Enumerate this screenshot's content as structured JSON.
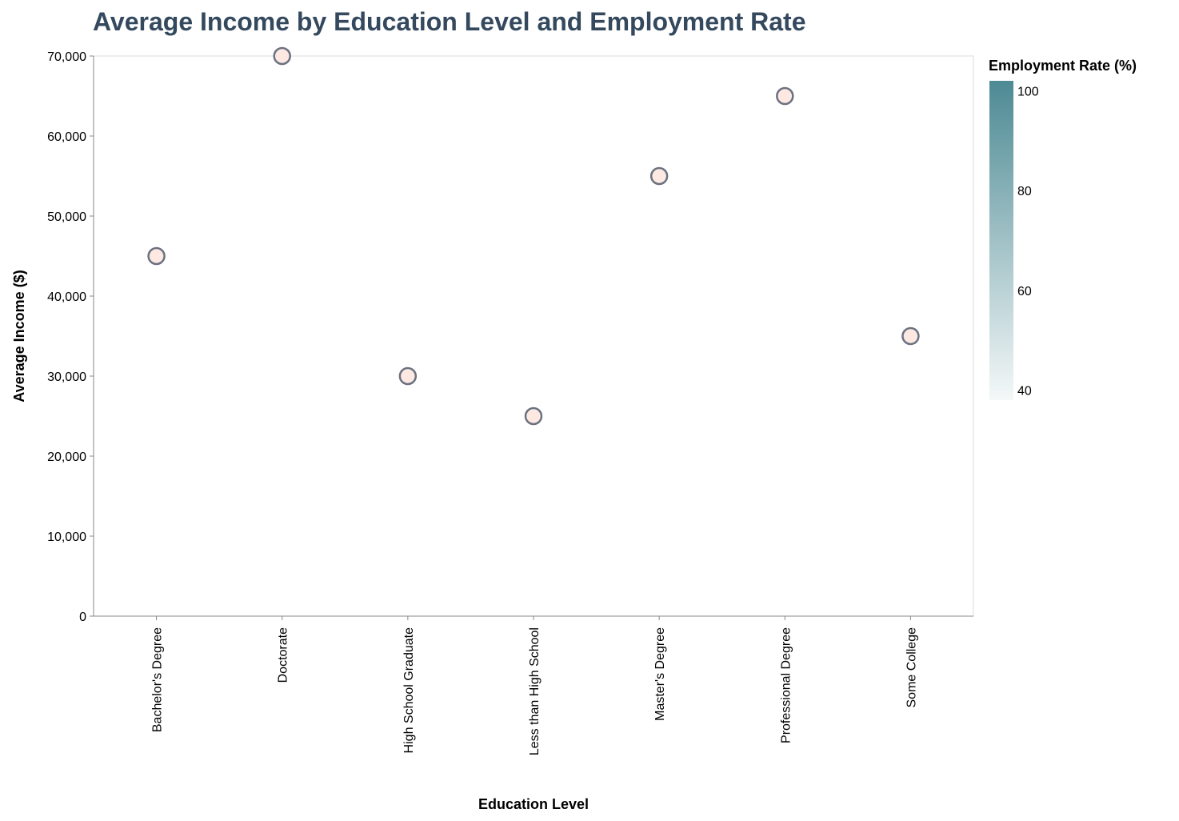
{
  "chart_data": {
    "type": "scatter",
    "title": "Average Income by Education Level and Employment Rate",
    "xlabel": "Education Level",
    "ylabel": "Average Income ($)",
    "categories": [
      "Bachelor's Degree",
      "Doctorate",
      "High School Graduate",
      "Less than High School",
      "Master's Degree",
      "Professional Degree",
      "Some College"
    ],
    "values": [
      45000,
      70000,
      30000,
      25000,
      55000,
      65000,
      35000
    ],
    "ylim": [
      0,
      70000
    ],
    "yticks": [
      0,
      10000,
      20000,
      30000,
      40000,
      50000,
      60000,
      70000
    ],
    "grid": false,
    "legend": {
      "title": "Employment Rate (%)",
      "placement": "right",
      "type": "gradient",
      "range": [
        38,
        102
      ],
      "ticks": [
        40,
        60,
        80,
        100
      ],
      "color_low": "#f4f8f8",
      "color_high": "#4d8a94"
    },
    "point_fill": "#fde8e2",
    "point_stroke": "#6b7280"
  }
}
